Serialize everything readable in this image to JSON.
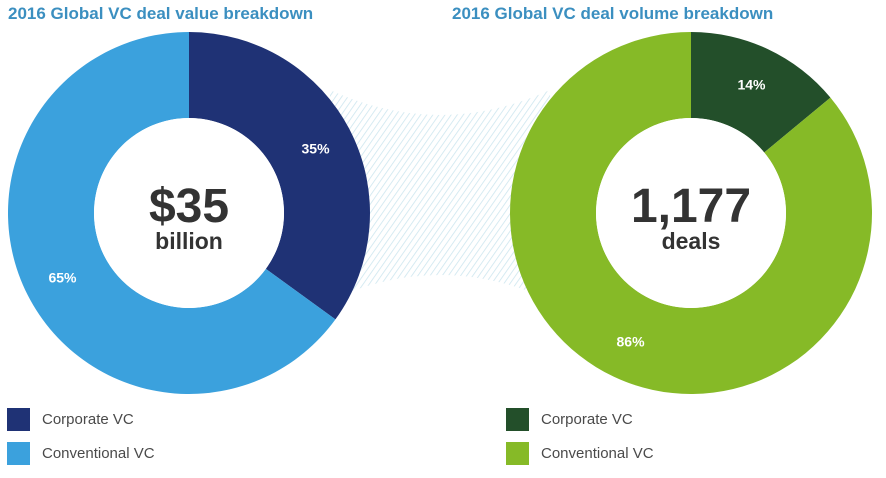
{
  "colors": {
    "value_corporate": "#1f3275",
    "value_conventional": "#3ba1dd",
    "volume_corporate": "#234f2a",
    "volume_conventional": "#86ba27",
    "title": "#3b8fc0",
    "center_text": "#333333",
    "hatch": "#cde6ef"
  },
  "chart_data": [
    {
      "type": "pie",
      "title": "2016 Global VC deal value breakdown",
      "center_value": "$35",
      "center_unit": "billion",
      "categories": [
        "Corporate VC",
        "Conventional VC"
      ],
      "values": [
        35,
        65
      ],
      "value_labels": [
        "35%",
        "65%"
      ],
      "legend": [
        "Corporate VC",
        "Conventional VC"
      ],
      "legend_position": "bottom-left"
    },
    {
      "type": "pie",
      "title": "2016 Global VC deal volume breakdown",
      "center_value": "1,177",
      "center_unit": "deals",
      "categories": [
        "Corporate VC",
        "Conventional VC"
      ],
      "values": [
        14,
        86
      ],
      "value_labels": [
        "14%",
        "86%"
      ],
      "legend": [
        "Corporate VC",
        "Conventional VC"
      ],
      "legend_position": "bottom-left"
    }
  ]
}
